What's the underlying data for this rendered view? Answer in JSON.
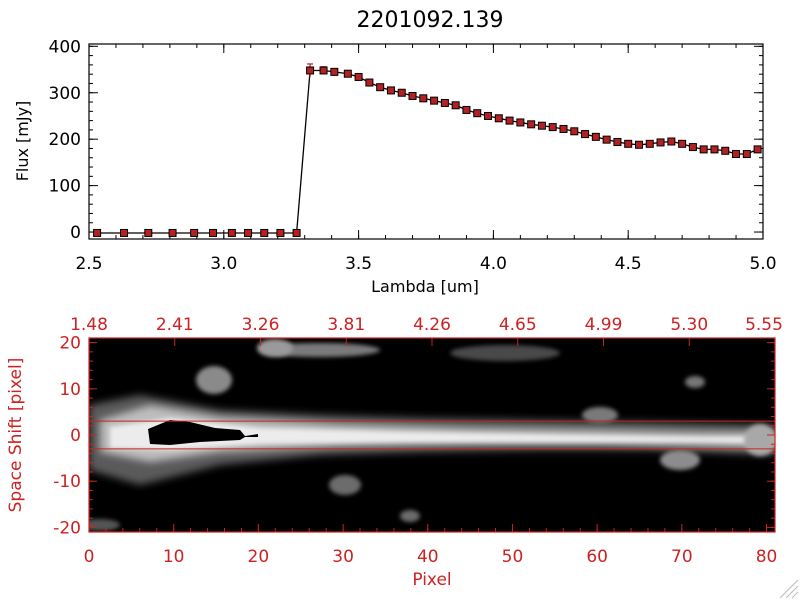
{
  "chart_data": [
    {
      "type": "line",
      "title": "2201092.139",
      "xlabel": "Lambda [um]",
      "ylabel": "Flux [mJy]",
      "xlim": [
        2.5,
        5.0
      ],
      "ylim": [
        -15,
        405
      ],
      "xticks": [
        "2.5",
        "3.0",
        "3.5",
        "4.0",
        "4.5",
        "5.0"
      ],
      "xtick_values": [
        2.5,
        3.0,
        3.5,
        4.0,
        4.5,
        5.0
      ],
      "yticks": [
        "0",
        "100",
        "200",
        "300",
        "400"
      ],
      "ytick_values": [
        0,
        100,
        200,
        300,
        400
      ],
      "marker_color": "#b22222",
      "line_color": "#000000",
      "series": [
        {
          "x": [
            2.53,
            2.63,
            2.72,
            2.81,
            2.89,
            2.96,
            3.03,
            3.09,
            3.15,
            3.21,
            3.27,
            3.32,
            3.37,
            3.41,
            3.46,
            3.5,
            3.54,
            3.58,
            3.62,
            3.66,
            3.7,
            3.74,
            3.78,
            3.82,
            3.86,
            3.9,
            3.94,
            3.98,
            4.02,
            4.06,
            4.1,
            4.14,
            4.18,
            4.22,
            4.26,
            4.3,
            4.34,
            4.38,
            4.42,
            4.46,
            4.5,
            4.54,
            4.58,
            4.62,
            4.66,
            4.7,
            4.74,
            4.78,
            4.82,
            4.86,
            4.9,
            4.94,
            4.98
          ],
          "y": [
            -2,
            -2,
            -2,
            -2,
            -2,
            -2,
            -2,
            -2,
            -2,
            -2,
            -2,
            348,
            348,
            345,
            341,
            334,
            322,
            312,
            305,
            300,
            293,
            288,
            283,
            278,
            273,
            263,
            256,
            250,
            245,
            240,
            236,
            232,
            229,
            226,
            222,
            217,
            211,
            205,
            199,
            194,
            190,
            188,
            190,
            193,
            195,
            190,
            183,
            178,
            178,
            175,
            168,
            168,
            178
          ],
          "err": [
            0,
            0,
            0,
            0,
            0,
            0,
            0,
            0,
            0,
            0,
            0,
            14,
            8,
            0,
            0,
            0,
            0,
            0,
            0,
            0,
            0,
            0,
            0,
            0,
            0,
            0,
            0,
            0,
            0,
            0,
            0,
            0,
            0,
            0,
            0,
            0,
            0,
            0,
            0,
            0,
            0,
            0,
            0,
            0,
            0,
            0,
            0,
            0,
            0,
            0,
            0,
            0,
            0
          ]
        }
      ]
    },
    {
      "type": "heatmap",
      "xlabel": "Pixel",
      "ylabel": "Space Shift [pixel]",
      "xlim": [
        0,
        81
      ],
      "ylim": [
        -21,
        21
      ],
      "xticks": [
        "0",
        "10",
        "20",
        "30",
        "40",
        "50",
        "60",
        "70",
        "80"
      ],
      "xtick_values": [
        0,
        10,
        20,
        30,
        40,
        50,
        60,
        70,
        80
      ],
      "yticks": [
        "-20",
        "-10",
        "0",
        "10",
        "20"
      ],
      "ytick_values": [
        -20,
        -10,
        0,
        10,
        20
      ],
      "top_axis_ticks": [
        "1.48",
        "2.41",
        "3.26",
        "3.81",
        "4.26",
        "4.65",
        "4.99",
        "5.30",
        "5.55"
      ],
      "aperture_lines": [
        3,
        -3
      ],
      "axis_color": "#cc2222"
    }
  ]
}
